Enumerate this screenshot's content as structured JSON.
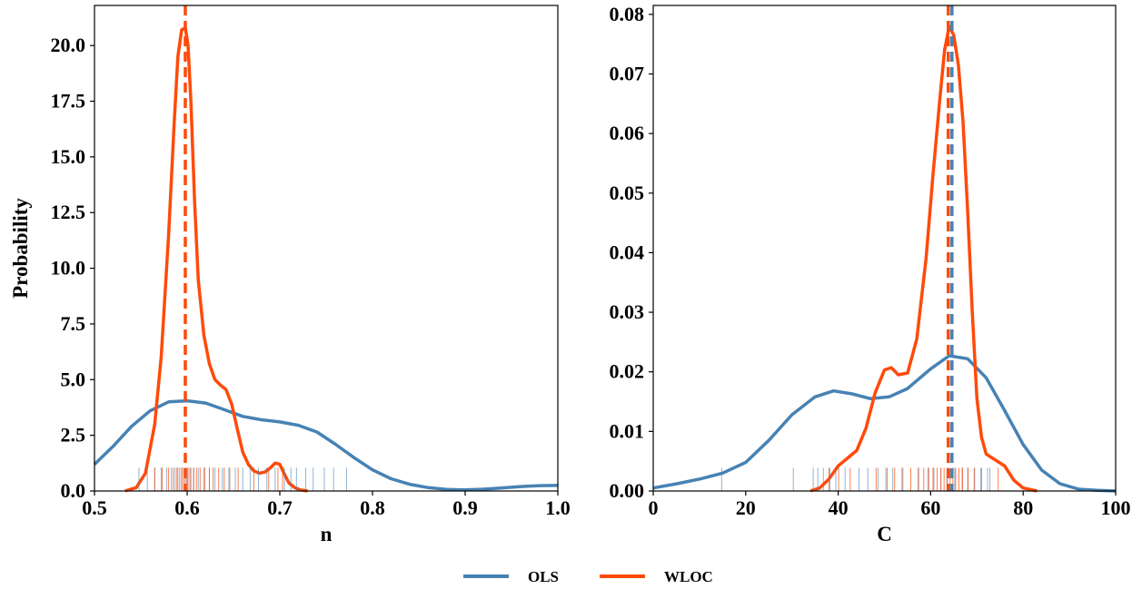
{
  "chart_data": [
    {
      "type": "kde",
      "xlabel": "n",
      "ylabel": "Probability",
      "xlim": [
        0.5,
        1.0
      ],
      "ylim": [
        0,
        21.8
      ],
      "xticks": [
        "0.5",
        "0.6",
        "0.7",
        "0.8",
        "0.9",
        "1.0"
      ],
      "yticks": [
        "0.0",
        "2.5",
        "5.0",
        "7.5",
        "10.0",
        "12.5",
        "15.0",
        "17.5",
        "20.0"
      ],
      "rug_height": 1.05,
      "series": [
        {
          "name": "OLS",
          "color": "#4682b4",
          "x": [
            0.5,
            0.52,
            0.54,
            0.56,
            0.58,
            0.6,
            0.62,
            0.64,
            0.66,
            0.68,
            0.7,
            0.72,
            0.74,
            0.76,
            0.78,
            0.8,
            0.82,
            0.84,
            0.86,
            0.88,
            0.9,
            0.92,
            0.94,
            0.96,
            0.98,
            1.0
          ],
          "y": [
            1.2,
            2.0,
            2.9,
            3.6,
            4.0,
            4.05,
            3.95,
            3.65,
            3.35,
            3.2,
            3.1,
            2.95,
            2.65,
            2.1,
            1.5,
            0.95,
            0.55,
            0.3,
            0.15,
            0.07,
            0.05,
            0.08,
            0.14,
            0.2,
            0.24,
            0.25
          ],
          "mean": 0.6,
          "rug": [
            0.548,
            0.557,
            0.565,
            0.572,
            0.578,
            0.583,
            0.587,
            0.59,
            0.594,
            0.597,
            0.6,
            0.603,
            0.607,
            0.612,
            0.618,
            0.624,
            0.63,
            0.638,
            0.645,
            0.652,
            0.66,
            0.668,
            0.677,
            0.686,
            0.695,
            0.705,
            0.712,
            0.718,
            0.728,
            0.736,
            0.748,
            0.758,
            0.772
          ]
        },
        {
          "name": "WLOC",
          "color": "#ff4a0a",
          "x": [
            0.533,
            0.545,
            0.555,
            0.565,
            0.572,
            0.58,
            0.586,
            0.59,
            0.594,
            0.598,
            0.601,
            0.604,
            0.608,
            0.612,
            0.618,
            0.624,
            0.63,
            0.636,
            0.642,
            0.648,
            0.654,
            0.66,
            0.666,
            0.672,
            0.678,
            0.684,
            0.69,
            0.695,
            0.7,
            0.705,
            0.71,
            0.716,
            0.722,
            0.73
          ],
          "y": [
            0,
            0.15,
            0.8,
            3.0,
            6.0,
            11.5,
            16.5,
            19.5,
            20.7,
            20.8,
            20.0,
            17.5,
            13.0,
            9.5,
            7.0,
            5.7,
            5.0,
            4.75,
            4.55,
            3.9,
            2.8,
            1.75,
            1.2,
            0.9,
            0.8,
            0.85,
            1.05,
            1.25,
            1.2,
            0.75,
            0.35,
            0.15,
            0.05,
            0
          ]
        }
      ],
      "wloc_mean": 0.598,
      "wloc_rug": [
        0.565,
        0.573,
        0.58,
        0.585,
        0.589,
        0.592,
        0.595,
        0.597,
        0.599,
        0.601,
        0.604,
        0.607,
        0.61,
        0.614,
        0.619,
        0.624,
        0.628,
        0.634,
        0.64,
        0.646,
        0.655,
        0.672,
        0.688,
        0.698,
        0.703
      ]
    },
    {
      "type": "kde",
      "xlabel": "C",
      "ylabel": "",
      "xlim": [
        0,
        100
      ],
      "ylim": [
        0,
        0.0815
      ],
      "xticks": [
        "0",
        "20",
        "40",
        "60",
        "80",
        "100"
      ],
      "yticks": [
        "0.00",
        "0.01",
        "0.02",
        "0.03",
        "0.04",
        "0.05",
        "0.06",
        "0.07",
        "0.08"
      ],
      "rug_height": 0.0039,
      "series": [
        {
          "name": "OLS",
          "color": "#4682b4",
          "x": [
            0,
            5,
            10,
            15,
            20,
            25,
            30,
            35,
            39,
            43,
            47,
            51,
            55,
            60,
            64,
            68,
            72,
            76,
            80,
            84,
            88,
            92,
            96,
            100
          ],
          "y": [
            0.0005,
            0.0012,
            0.002,
            0.003,
            0.0048,
            0.0085,
            0.0128,
            0.0158,
            0.0168,
            0.0163,
            0.0155,
            0.0158,
            0.0172,
            0.0205,
            0.0227,
            0.0222,
            0.019,
            0.0135,
            0.0078,
            0.0035,
            0.0012,
            0.0003,
            0.0001,
            0
          ]
        },
        {
          "name": "WLOC",
          "color": "#ff4a0a",
          "x": [
            34,
            36,
            38,
            40,
            42,
            44,
            46,
            48,
            50,
            51.5,
            53,
            55,
            57,
            59,
            60.5,
            62,
            63,
            64,
            65,
            66,
            67,
            68,
            69,
            70,
            71,
            72,
            74,
            76,
            78,
            80,
            83
          ],
          "y": [
            0,
            0.0005,
            0.002,
            0.0042,
            0.0055,
            0.0068,
            0.0105,
            0.0165,
            0.0203,
            0.0207,
            0.0195,
            0.0198,
            0.0255,
            0.039,
            0.053,
            0.066,
            0.074,
            0.078,
            0.0765,
            0.0715,
            0.062,
            0.047,
            0.03,
            0.0155,
            0.009,
            0.0062,
            0.0052,
            0.0042,
            0.0018,
            0.0005,
            0
          ]
        }
      ],
      "ols_mean": 64.6,
      "wloc_mean": 63.8,
      "ols_rug": [
        14.8,
        30.3,
        34.6,
        35.6,
        36.8,
        38.2,
        39.5,
        41.5,
        44.5,
        46.4,
        48.6,
        50.3,
        51.8,
        54.0,
        57.3,
        59.4,
        60.7,
        62.2,
        63.5,
        65.2,
        66.8,
        68.0,
        69.4,
        70.8,
        72.3,
        72.8
      ],
      "wloc_rug": [
        38.0,
        40.1,
        42.6,
        48.2,
        50.6,
        52.2,
        53.8,
        55.7,
        57.4,
        58.5,
        59.6,
        60.5,
        61.4,
        62.2,
        62.9,
        63.6,
        64.2,
        64.8,
        65.4,
        66.1,
        66.9,
        68.1,
        69.5,
        71.0,
        74.6
      ]
    }
  ],
  "legend": {
    "items": [
      {
        "label": "OLS",
        "color": "#4682b4"
      },
      {
        "label": "WLOC",
        "color": "#ff4a0a"
      }
    ]
  }
}
